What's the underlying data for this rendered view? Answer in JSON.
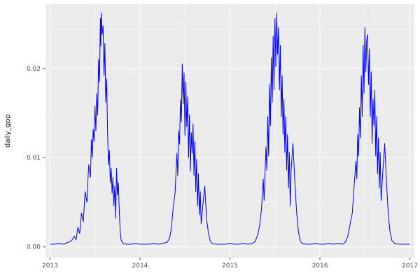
{
  "figure": {
    "kind": "ggplot-line-chart"
  },
  "colors": {
    "panel_background": "#EBEBEB",
    "grid_major": "#FFFFFF",
    "grid_minor": "#FFFFFF",
    "line": "#0000FF",
    "tick_mark": "#333333",
    "tick_label": "#4D4D4D",
    "axis_title": "#1A1A1A",
    "figure_background": "#FFFFFF"
  },
  "chart_data": {
    "type": "line",
    "title": "",
    "xlabel": "",
    "ylabel": "daily_gpp",
    "legend_position": "none",
    "grid": true,
    "xlim": [
      2012.95,
      2017.05
    ],
    "ylim": [
      -0.0012,
      0.0272
    ],
    "x_ticks": [
      2013,
      2014,
      2015,
      2016,
      2017
    ],
    "x_tick_labels": [
      "2013",
      "2014",
      "2015",
      "2016",
      "2017"
    ],
    "x_minor_ticks": [
      2013.5,
      2014.5,
      2015.5,
      2016.5
    ],
    "y_ticks": [
      0,
      0.01,
      0.02
    ],
    "y_tick_labels": [
      "0.00",
      "0.01",
      "0.02"
    ],
    "y_minor_ticks": [
      0.005,
      0.015,
      0.025
    ],
    "series_name": "daily_gpp",
    "points": [
      [
        2013.0,
        0.0003
      ],
      [
        2013.05,
        0.0003
      ],
      [
        2013.1,
        0.0004
      ],
      [
        2013.15,
        0.0003
      ],
      [
        2013.2,
        0.0005
      ],
      [
        2013.24,
        0.0007
      ],
      [
        2013.27,
        0.0012
      ],
      [
        2013.29,
        0.0008
      ],
      [
        2013.31,
        0.0022
      ],
      [
        2013.33,
        0.0015
      ],
      [
        2013.35,
        0.0038
      ],
      [
        2013.37,
        0.0028
      ],
      [
        2013.39,
        0.0062
      ],
      [
        2013.41,
        0.005
      ],
      [
        2013.43,
        0.0092
      ],
      [
        2013.45,
        0.0078
      ],
      [
        2013.46,
        0.012
      ],
      [
        2013.47,
        0.01
      ],
      [
        2013.48,
        0.0132
      ],
      [
        2013.49,
        0.0118
      ],
      [
        2013.5,
        0.0158
      ],
      [
        2013.51,
        0.013
      ],
      [
        2013.52,
        0.0172
      ],
      [
        2013.53,
        0.0148
      ],
      [
        2013.54,
        0.021
      ],
      [
        2013.55,
        0.0185
      ],
      [
        2013.56,
        0.0256
      ],
      [
        2013.565,
        0.0225
      ],
      [
        2013.57,
        0.0262
      ],
      [
        2013.58,
        0.0238
      ],
      [
        2013.59,
        0.0248
      ],
      [
        2013.6,
        0.0192
      ],
      [
        2013.61,
        0.0228
      ],
      [
        2013.62,
        0.0162
      ],
      [
        2013.63,
        0.0188
      ],
      [
        2013.64,
        0.0128
      ],
      [
        2013.65,
        0.0092
      ],
      [
        2013.66,
        0.0108
      ],
      [
        2013.67,
        0.0072
      ],
      [
        2013.68,
        0.0088
      ],
      [
        2013.69,
        0.006
      ],
      [
        2013.7,
        0.0078
      ],
      [
        2013.71,
        0.0046
      ],
      [
        2013.72,
        0.0068
      ],
      [
        2013.73,
        0.0032
      ],
      [
        2013.74,
        0.0088
      ],
      [
        2013.75,
        0.0058
      ],
      [
        2013.76,
        0.0072
      ],
      [
        2013.77,
        0.004
      ],
      [
        2013.78,
        0.0018
      ],
      [
        2013.79,
        0.0008
      ],
      [
        2013.81,
        0.0004
      ],
      [
        2013.85,
        0.0003
      ],
      [
        2013.9,
        0.0003
      ],
      [
        2013.95,
        0.0004
      ],
      [
        2014.0,
        0.0003
      ],
      [
        2014.05,
        0.0003
      ],
      [
        2014.1,
        0.0003
      ],
      [
        2014.15,
        0.0004
      ],
      [
        2014.2,
        0.0003
      ],
      [
        2014.25,
        0.0004
      ],
      [
        2014.3,
        0.0005
      ],
      [
        2014.33,
        0.001
      ],
      [
        2014.35,
        0.0022
      ],
      [
        2014.37,
        0.0045
      ],
      [
        2014.39,
        0.006
      ],
      [
        2014.41,
        0.0105
      ],
      [
        2014.42,
        0.008
      ],
      [
        2014.43,
        0.013
      ],
      [
        2014.44,
        0.0115
      ],
      [
        2014.45,
        0.0165
      ],
      [
        2014.46,
        0.014
      ],
      [
        2014.47,
        0.0205
      ],
      [
        2014.48,
        0.016
      ],
      [
        2014.49,
        0.0195
      ],
      [
        2014.5,
        0.0125
      ],
      [
        2014.51,
        0.0185
      ],
      [
        2014.52,
        0.0135
      ],
      [
        2014.53,
        0.0168
      ],
      [
        2014.54,
        0.01
      ],
      [
        2014.55,
        0.0148
      ],
      [
        2014.56,
        0.0085
      ],
      [
        2014.57,
        0.0128
      ],
      [
        2014.58,
        0.0105
      ],
      [
        2014.59,
        0.0138
      ],
      [
        2014.6,
        0.008
      ],
      [
        2014.61,
        0.0118
      ],
      [
        2014.62,
        0.0062
      ],
      [
        2014.63,
        0.0098
      ],
      [
        2014.64,
        0.0046
      ],
      [
        2014.65,
        0.0082
      ],
      [
        2014.66,
        0.0036
      ],
      [
        2014.67,
        0.0062
      ],
      [
        2014.68,
        0.0026
      ],
      [
        2014.7,
        0.0048
      ],
      [
        2014.72,
        0.0068
      ],
      [
        2014.74,
        0.0032
      ],
      [
        2014.76,
        0.0016
      ],
      [
        2014.78,
        0.0007
      ],
      [
        2014.8,
        0.0004
      ],
      [
        2014.85,
        0.0003
      ],
      [
        2014.9,
        0.0003
      ],
      [
        2014.95,
        0.0003
      ],
      [
        2015.0,
        0.0004
      ],
      [
        2015.05,
        0.0003
      ],
      [
        2015.1,
        0.0003
      ],
      [
        2015.15,
        0.0004
      ],
      [
        2015.2,
        0.0003
      ],
      [
        2015.25,
        0.0004
      ],
      [
        2015.28,
        0.0006
      ],
      [
        2015.31,
        0.0014
      ],
      [
        2015.33,
        0.0024
      ],
      [
        2015.35,
        0.0042
      ],
      [
        2015.37,
        0.0076
      ],
      [
        2015.38,
        0.0052
      ],
      [
        2015.4,
        0.0112
      ],
      [
        2015.41,
        0.0086
      ],
      [
        2015.42,
        0.0146
      ],
      [
        2015.43,
        0.0102
      ],
      [
        2015.44,
        0.0182
      ],
      [
        2015.45,
        0.0136
      ],
      [
        2015.46,
        0.0212
      ],
      [
        2015.47,
        0.0162
      ],
      [
        2015.48,
        0.0236
      ],
      [
        2015.49,
        0.0176
      ],
      [
        2015.5,
        0.0256
      ],
      [
        2015.51,
        0.0202
      ],
      [
        2015.52,
        0.0262
      ],
      [
        2015.53,
        0.0216
      ],
      [
        2015.54,
        0.0246
      ],
      [
        2015.55,
        0.0176
      ],
      [
        2015.56,
        0.0226
      ],
      [
        2015.57,
        0.0146
      ],
      [
        2015.58,
        0.0192
      ],
      [
        2015.59,
        0.0126
      ],
      [
        2015.6,
        0.0166
      ],
      [
        2015.61,
        0.0106
      ],
      [
        2015.62,
        0.0146
      ],
      [
        2015.63,
        0.0086
      ],
      [
        2015.64,
        0.0126
      ],
      [
        2015.65,
        0.0066
      ],
      [
        2015.66,
        0.0106
      ],
      [
        2015.67,
        0.0046
      ],
      [
        2015.68,
        0.0086
      ],
      [
        2015.7,
        0.0116
      ],
      [
        2015.72,
        0.0076
      ],
      [
        2015.74,
        0.004
      ],
      [
        2015.76,
        0.0018
      ],
      [
        2015.78,
        0.0007
      ],
      [
        2015.8,
        0.0004
      ],
      [
        2015.85,
        0.0003
      ],
      [
        2015.9,
        0.0003
      ],
      [
        2015.95,
        0.0004
      ],
      [
        2016.0,
        0.0003
      ],
      [
        2016.05,
        0.0003
      ],
      [
        2016.1,
        0.0004
      ],
      [
        2016.15,
        0.0003
      ],
      [
        2016.2,
        0.0004
      ],
      [
        2016.25,
        0.0003
      ],
      [
        2016.28,
        0.0005
      ],
      [
        2016.31,
        0.0012
      ],
      [
        2016.34,
        0.0028
      ],
      [
        2016.36,
        0.0038
      ],
      [
        2016.38,
        0.0068
      ],
      [
        2016.4,
        0.0096
      ],
      [
        2016.41,
        0.0076
      ],
      [
        2016.42,
        0.0126
      ],
      [
        2016.43,
        0.0102
      ],
      [
        2016.44,
        0.0156
      ],
      [
        2016.45,
        0.0122
      ],
      [
        2016.46,
        0.0192
      ],
      [
        2016.47,
        0.0146
      ],
      [
        2016.48,
        0.0226
      ],
      [
        2016.49,
        0.0172
      ],
      [
        2016.5,
        0.0246
      ],
      [
        2016.51,
        0.0196
      ],
      [
        2016.52,
        0.0232
      ],
      [
        2016.53,
        0.0238
      ],
      [
        2016.54,
        0.0182
      ],
      [
        2016.55,
        0.0222
      ],
      [
        2016.56,
        0.0146
      ],
      [
        2016.57,
        0.0196
      ],
      [
        2016.58,
        0.0116
      ],
      [
        2016.59,
        0.0166
      ],
      [
        2016.6,
        0.0136
      ],
      [
        2016.61,
        0.0176
      ],
      [
        2016.62,
        0.0102
      ],
      [
        2016.63,
        0.0146
      ],
      [
        2016.64,
        0.0082
      ],
      [
        2016.65,
        0.0122
      ],
      [
        2016.66,
        0.0066
      ],
      [
        2016.67,
        0.0106
      ],
      [
        2016.68,
        0.0052
      ],
      [
        2016.7,
        0.0086
      ],
      [
        2016.72,
        0.0116
      ],
      [
        2016.74,
        0.0072
      ],
      [
        2016.76,
        0.0036
      ],
      [
        2016.78,
        0.0016
      ],
      [
        2016.8,
        0.0007
      ],
      [
        2016.83,
        0.0004
      ],
      [
        2016.88,
        0.0003
      ],
      [
        2016.92,
        0.0003
      ],
      [
        2016.96,
        0.0003
      ],
      [
        2017.0,
        0.0003
      ]
    ]
  }
}
